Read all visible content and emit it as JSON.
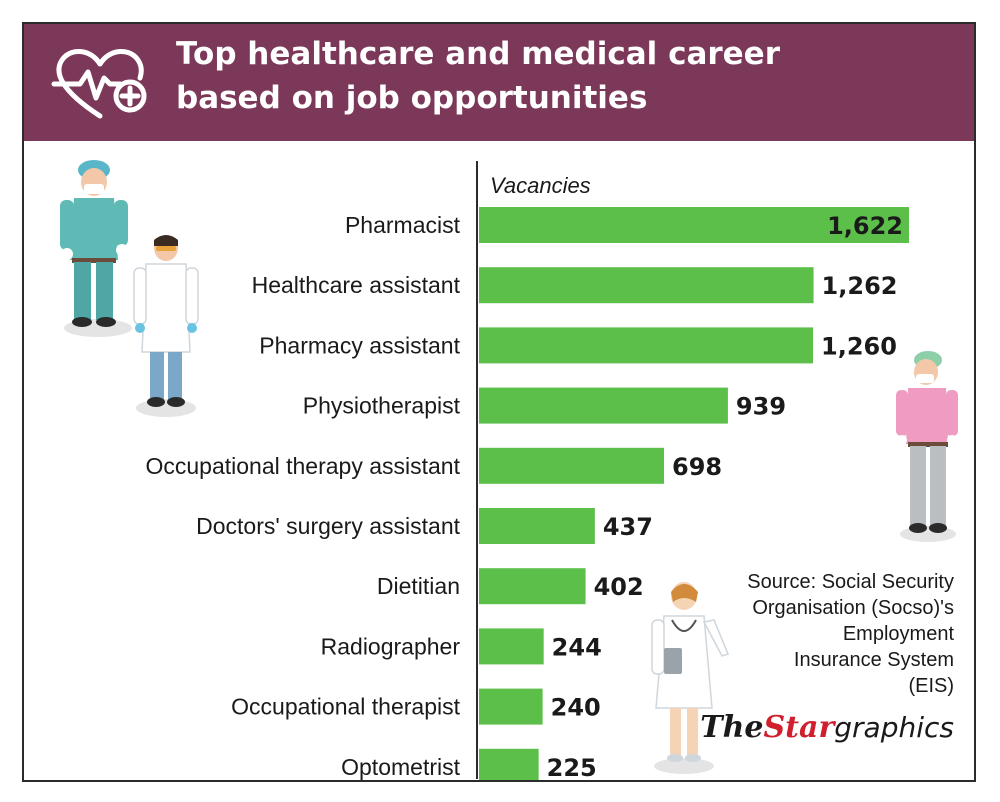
{
  "header": {
    "title_line1": "Top healthcare and medical career",
    "title_line2": "based on job opportunities",
    "icon": "heart-pulse-plus-icon"
  },
  "chart_data": {
    "type": "bar",
    "orientation": "horizontal",
    "title": "Top healthcare and medical career based on job opportunities",
    "xlabel": "Vacancies",
    "categories": [
      "Pharmacist",
      "Healthcare assistant",
      "Pharmacy assistant",
      "Physiotherapist",
      "Occupational therapy assistant",
      "Doctors' surgery assistant",
      "Dietitian",
      "Radiographer",
      "Occupational therapist",
      "Optometrist"
    ],
    "values": [
      1622,
      1262,
      1260,
      939,
      698,
      437,
      402,
      244,
      240,
      225
    ],
    "value_labels": [
      "1,622",
      "1,262",
      "1,260",
      "939",
      "698",
      "437",
      "402",
      "244",
      "240",
      "225"
    ],
    "xlim": [
      0,
      1622
    ],
    "grid": false,
    "bar_color": "#5cbf4a"
  },
  "source": {
    "lines": [
      "Source: Social Security",
      "Organisation (Socso)'s",
      "Employment",
      "Insurance System",
      "(EIS)"
    ]
  },
  "brand": {
    "the": "The",
    "star": "Star",
    "graphics": "graphics"
  },
  "colors": {
    "header_bg": "#7b3858",
    "bar": "#5cbf4a",
    "border": "#2b2b2b"
  },
  "illustrations": [
    "surgeon-figure",
    "doctor-figure",
    "nurse-figure",
    "female-doctor-figure"
  ]
}
